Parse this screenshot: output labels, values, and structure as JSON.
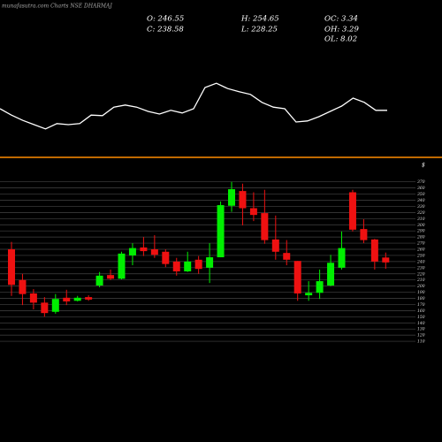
{
  "header": {
    "title": "munafasutra.com Charts NSE DHARMAJ",
    "stats": [
      "O: 246.55",
      "H: 254.65",
      "OC: 3.34",
      "C: 238.58",
      "L: 228.25",
      "OH: 3.29",
      "OL: 8.02"
    ],
    "currency": "$"
  },
  "chart_data": [
    {
      "type": "line",
      "color": "#ffffff",
      "ylim": [
        0,
        100
      ],
      "values": [
        45,
        33,
        23,
        15,
        7,
        17,
        15,
        17,
        33,
        32,
        48,
        52,
        48,
        40,
        35,
        42,
        37,
        45,
        85,
        93,
        83,
        77,
        72,
        57,
        48,
        45,
        20,
        22,
        30,
        40,
        50,
        65,
        57,
        42,
        42
      ]
    },
    {
      "type": "candlestick",
      "up_color": "#00ee00",
      "down_color": "#ee1111",
      "grid": true,
      "ylim": [
        100,
        371
      ],
      "yticks": [
        110,
        120,
        130,
        140,
        150,
        160,
        170,
        180,
        190,
        200,
        210,
        220,
        230,
        240,
        250,
        260,
        270,
        280,
        290,
        300,
        310,
        320,
        330,
        340,
        350,
        360,
        370
      ],
      "open": [
        260,
        210,
        188,
        173,
        158,
        181,
        176,
        182,
        201,
        218,
        212,
        250,
        263,
        260,
        256,
        240,
        224,
        243,
        230,
        247,
        331,
        355,
        327,
        319,
        276,
        254,
        241,
        185,
        189,
        201,
        230,
        353,
        293,
        276,
        246.55
      ],
      "high": [
        272,
        220,
        195,
        182,
        187,
        194,
        184,
        185,
        223,
        227,
        256,
        270,
        280,
        283,
        260,
        246,
        256,
        249,
        270,
        338,
        370,
        367,
        353,
        357,
        315,
        275,
        241,
        208,
        227,
        251,
        289,
        357,
        309,
        277,
        254.65
      ],
      "low": [
        184,
        169,
        162,
        150,
        155,
        169,
        175,
        176,
        198,
        210,
        211,
        234,
        249,
        246,
        231,
        217,
        223,
        220,
        205,
        247,
        321,
        299,
        306,
        269,
        243,
        234,
        176,
        176,
        179,
        200,
        227,
        289,
        270,
        227,
        228.25
      ],
      "close": [
        202,
        187,
        173,
        156,
        179,
        175,
        181,
        178,
        217,
        212,
        253,
        262,
        257,
        251,
        236,
        224,
        240,
        228,
        247,
        332,
        358,
        327,
        316,
        275,
        256,
        243,
        188,
        189,
        208,
        238,
        262,
        292,
        275,
        240,
        238.58
      ]
    }
  ]
}
